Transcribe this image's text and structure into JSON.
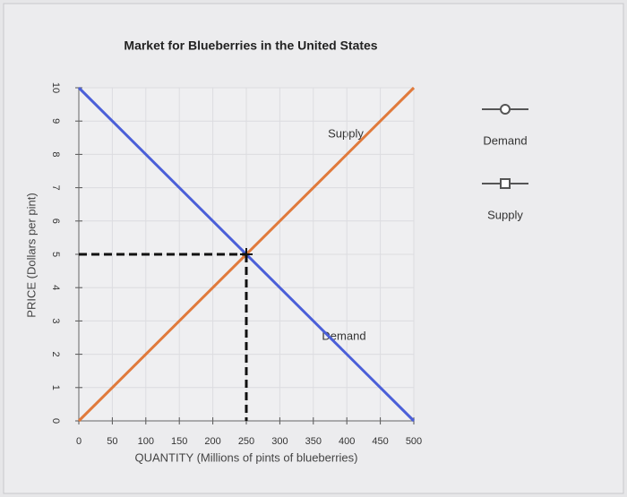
{
  "chart_data": {
    "type": "line",
    "title": "Market for Blueberries in the United States",
    "x_label": "QUANTITY (Millions of pints of blueberries)",
    "y_label": "PRICE (Dollars per pint)",
    "x": [
      0,
      500
    ],
    "series": [
      {
        "name": "Demand",
        "color": "#4b5fd8",
        "values": [
          10,
          0
        ]
      },
      {
        "name": "Supply",
        "color": "#e07a3c",
        "values": [
          0,
          10
        ]
      }
    ],
    "equilibrium": {
      "x": 250,
      "y": 5
    },
    "annotations": [
      "Supply",
      "Demand"
    ],
    "xlim": [
      0,
      500
    ],
    "xticks": [
      0,
      50,
      100,
      150,
      200,
      250,
      300,
      350,
      400,
      450,
      500
    ],
    "ylim": [
      0,
      10
    ],
    "yticks": [
      0,
      1,
      2,
      3,
      4,
      5,
      6,
      7,
      8,
      9,
      10
    ],
    "grid": true
  }
}
